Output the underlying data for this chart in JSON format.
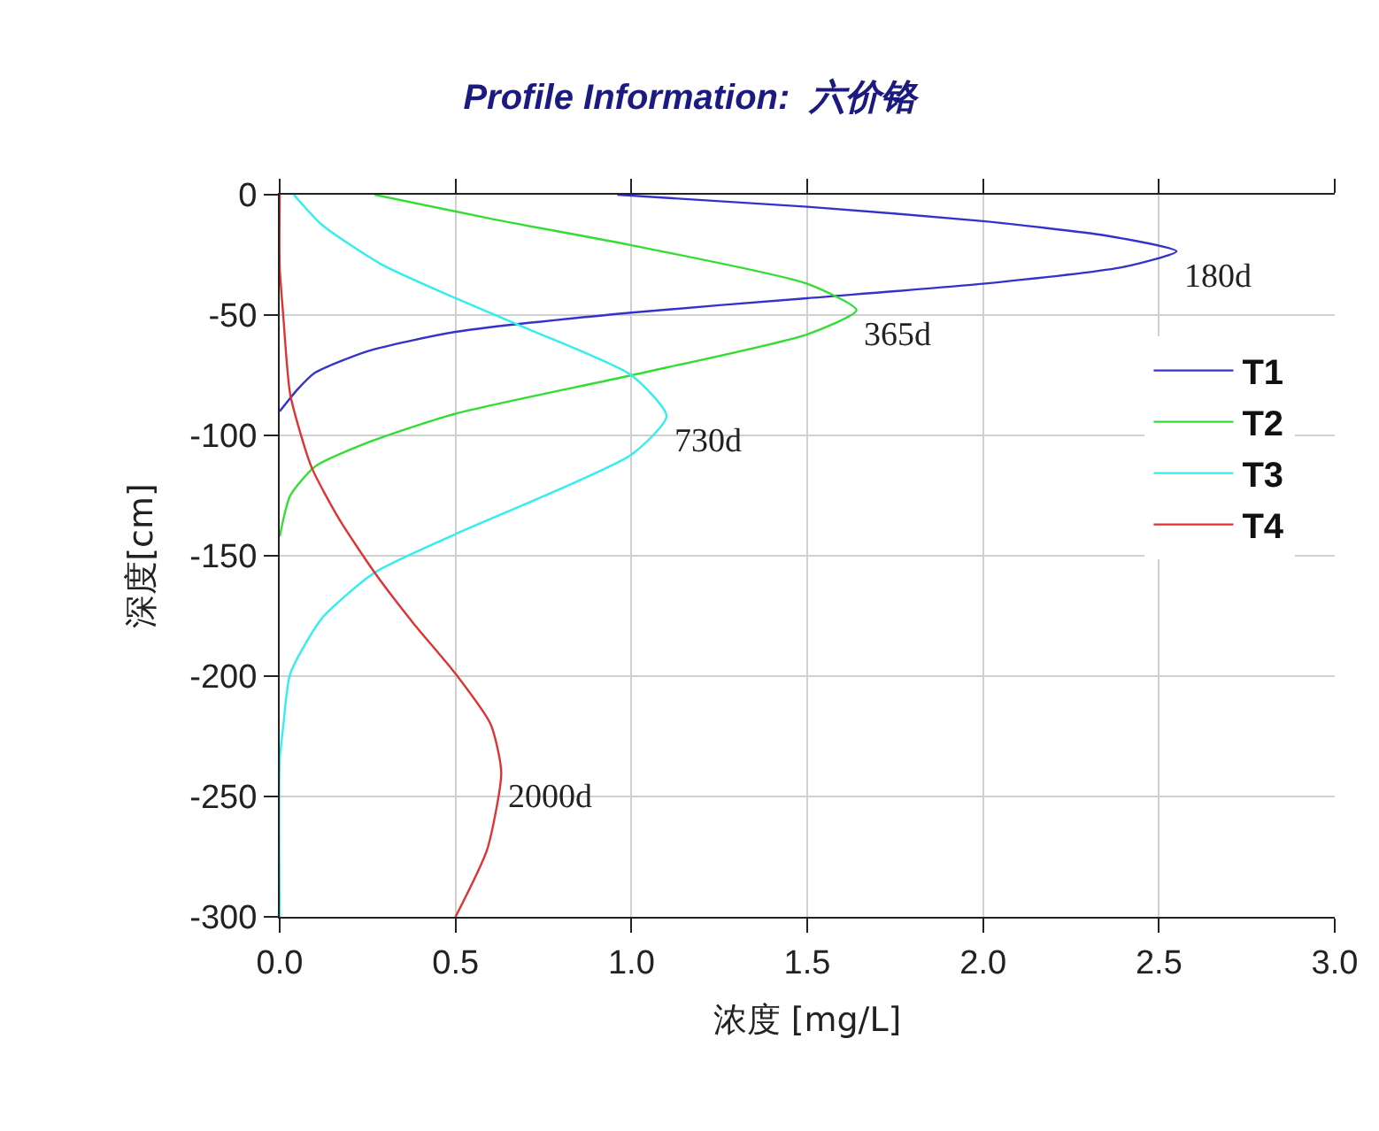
{
  "chart_data": {
    "type": "line",
    "title": "Profile Information:  六价铬",
    "xlabel": "浓度 [mg/L]",
    "ylabel": "深度[cm]",
    "xlim": [
      0,
      3
    ],
    "xticks": [
      {
        "value": 0,
        "label": "0.0"
      },
      {
        "value": 0.5,
        "label": "0.5"
      },
      {
        "value": 1,
        "label": "1.0"
      },
      {
        "value": 1.5,
        "label": "1.5"
      },
      {
        "value": 2,
        "label": "2.0"
      },
      {
        "value": 2.5,
        "label": "2.5"
      },
      {
        "value": 3,
        "label": "3.0"
      }
    ],
    "ylim": [
      -300,
      0
    ],
    "yticks": [
      0,
      -50,
      -100,
      -150,
      -200,
      -250,
      -300
    ],
    "grid": true,
    "legend": "right",
    "marker": "none",
    "line_style": "solid",
    "series": [
      {
        "name": "T1",
        "color": "#3333cc",
        "x": [
          0.96,
          1.5,
          2.0,
          2.35,
          2.55,
          2.4,
          2.0,
          1.5,
          1.0,
          0.5,
          0.25,
          0.1,
          0.05,
          0
        ],
        "values": [
          0,
          -5,
          -11,
          -17,
          -23.5,
          -30,
          -37,
          -43,
          -49,
          -57,
          -65,
          -74,
          -81,
          -90
        ]
      },
      {
        "name": "T2",
        "color": "#33dd33",
        "x": [
          0.27,
          0.6,
          1.0,
          1.5,
          1.64,
          1.5,
          1.0,
          0.5,
          0.25,
          0.1,
          0.03,
          0
        ],
        "values": [
          0,
          -10,
          -21,
          -37,
          -48,
          -58,
          -75,
          -91,
          -103,
          -113,
          -125,
          -142
        ]
      },
      {
        "name": "T3",
        "color": "#33eeee",
        "x": [
          0.04,
          0.12,
          0.29,
          0.5,
          0.71,
          1.0,
          1.1,
          1.0,
          0.5,
          0.27,
          0.12,
          0.03,
          0.01,
          0,
          0
        ],
        "values": [
          0,
          -12.5,
          -29,
          -43,
          -56,
          -75,
          -92,
          -108,
          -141,
          -157,
          -176,
          -199,
          -221,
          -235,
          -300
        ]
      },
      {
        "name": "T4",
        "color": "#dd3333",
        "x": [
          0,
          0,
          0.01,
          0.03,
          0.09,
          0.17,
          0.27,
          0.38,
          0.5,
          0.6,
          0.63,
          0.59,
          0.5
        ],
        "values": [
          0,
          -30,
          -50,
          -83,
          -113,
          -135,
          -157,
          -178,
          -199,
          -220,
          -240,
          -272,
          -300
        ]
      }
    ],
    "annotations": [
      {
        "text": "180d",
        "x": 2.55,
        "y": -23.5
      },
      {
        "text": "365d",
        "x": 1.64,
        "y": -48
      },
      {
        "text": "730d",
        "x": 1.1,
        "y": -92
      },
      {
        "text": "2000d",
        "x": 0.63,
        "y": -240
      }
    ]
  }
}
